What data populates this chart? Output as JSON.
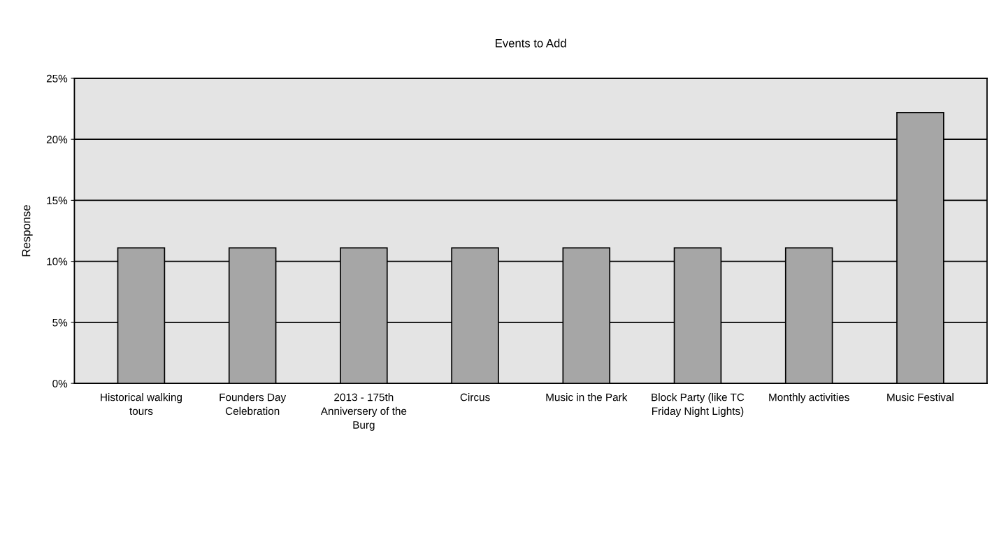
{
  "chart_data": {
    "type": "bar",
    "title": "Events to Add",
    "ylabel": "Response",
    "categories": [
      "Historical walking tours",
      "Founders Day Celebration",
      "2013 - 175th Anniversery of the Burg",
      "Circus",
      "Music in the Park",
      "Block Party (like TC Friday Night Lights)",
      "Monthly activities",
      "Music Festival"
    ],
    "values": [
      11.1,
      11.1,
      11.1,
      11.1,
      11.1,
      11.1,
      11.1,
      22.2
    ],
    "color": "#a6a6a6",
    "ylim": [
      0,
      25
    ],
    "yticks": [
      {
        "value": 0,
        "label": "0%"
      },
      {
        "value": 5,
        "label": "5%"
      },
      {
        "value": 10,
        "label": "10%"
      },
      {
        "value": 15,
        "label": "15%"
      },
      {
        "value": 20,
        "label": "20%"
      },
      {
        "value": 25,
        "label": "25%"
      }
    ],
    "grid": "y"
  }
}
